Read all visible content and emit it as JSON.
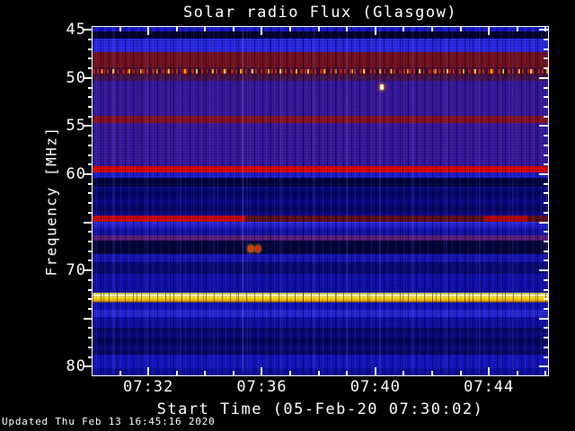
{
  "title": "Solar radio Flux (Glasgow)",
  "footer": {
    "updated_text": "Updated Thu Feb 13 16:45:16 2020"
  },
  "chart_data": {
    "type": "heatmap",
    "subtype": "solar-radio-spectrogram",
    "station": "Glasgow",
    "title": "Solar radio Flux (Glasgow)",
    "xlabel": "Start Time (05-Feb-20 07:30:02)",
    "ylabel": "Frequency [MHz]",
    "colormap": "dark-blue background with red/yellow intensity bands",
    "grid": "off",
    "legend": "none",
    "time_axis": {
      "start_time": "07:30:02",
      "end_time": "07:46:05",
      "tick_labels": [
        "07:32",
        "07:36",
        "07:40",
        "07:44"
      ],
      "minor_tick_interval_seconds": 60
    },
    "freq_axis": {
      "top_mhz": 44.7,
      "bottom_mhz": 80.9,
      "tick_labels": [
        "45",
        "50",
        "55",
        "60",
        "70",
        "80"
      ],
      "labeled_values": [
        45,
        50,
        55,
        60,
        70,
        80
      ],
      "major_tick_values": [
        45,
        50,
        55,
        60,
        65,
        70,
        75,
        80
      ],
      "minor_tick_step_mhz": 1,
      "orientation": "frequency increases downward"
    },
    "base_color": "#0c0cb4",
    "bands": [
      {
        "f0": 44.7,
        "f1": 45.15,
        "color": "#1a1ac8",
        "note": "top edge blue"
      },
      {
        "f0": 45.15,
        "f1": 45.95,
        "color": "#00002e",
        "note": "dark lane"
      },
      {
        "f0": 45.95,
        "f1": 47.3,
        "color": "#2828e6",
        "note": "bright blue noise"
      },
      {
        "f0": 47.3,
        "f1": 48.9,
        "color": "#77101d",
        "note": "broad dark-red RFI band"
      },
      {
        "f0": 48.9,
        "f1": 49.75,
        "color": "#50102e",
        "special": "dashes",
        "dash_colors": [
          "#cf1800",
          "#d42600",
          "#ffb300",
          "#ffd24a"
        ],
        "note": "periodic bright RFI dashes ~49.3 MHz"
      },
      {
        "f0": 49.75,
        "f1": 50.3,
        "color": "#46144e",
        "note": "red-purple transition"
      },
      {
        "f0": 50.3,
        "f1": 53.95,
        "color": "#37189e",
        "note": "purple haze"
      },
      {
        "f0": 53.95,
        "f1": 54.7,
        "color": "#8a1120",
        "note": "dark red RFI band ~54.3 MHz"
      },
      {
        "f0": 54.7,
        "f1": 59.15,
        "color": "#37189e",
        "note": "purple haze"
      },
      {
        "f0": 59.15,
        "f1": 59.8,
        "color": "#e60000",
        "note": "bright red RFI line ~59.5 MHz"
      },
      {
        "f0": 59.8,
        "f1": 60.4,
        "color": "#1d1dd0"
      },
      {
        "f0": 60.4,
        "f1": 61.3,
        "color": "#02023e",
        "note": "dark lane"
      },
      {
        "f0": 61.3,
        "f1": 64.3,
        "special": "vgradient",
        "colors": [
          "#0b0b92",
          "#04045c",
          "#0b0b92",
          "#05055f",
          "#0b0b92"
        ]
      },
      {
        "f0": 64.3,
        "f1": 64.95,
        "special": "segmented",
        "note": "RFI line ~64.5 MHz: bright until ~07:35, re-brightens ~07:44",
        "segments": [
          {
            "from": "07:30:02",
            "to": "07:35:24",
            "color": "#d40000"
          },
          {
            "from": "07:35:24",
            "to": "07:43:51",
            "color": "#5f1014"
          },
          {
            "from": "07:43:51",
            "to": "07:45:22",
            "color": "#bb0000"
          },
          {
            "from": "07:45:22",
            "to": "07:46:05",
            "color": "#5f1014"
          }
        ]
      },
      {
        "f0": 64.95,
        "f1": 65.7,
        "special": "vgradient",
        "colors": [
          "#2e2ee4",
          "#1717c0"
        ]
      },
      {
        "f0": 65.7,
        "f1": 66.3,
        "color": "#1212a8"
      },
      {
        "f0": 66.3,
        "f1": 66.9,
        "color": "#5c1e7a",
        "note": "purple-red band"
      },
      {
        "f0": 66.9,
        "f1": 68.3,
        "color": "#04043c",
        "note": "dark lane with burst dots"
      },
      {
        "f0": 68.3,
        "f1": 69.15,
        "color": "#1616bb"
      },
      {
        "f0": 69.15,
        "f1": 70.4,
        "color": "#090974"
      },
      {
        "f0": 70.4,
        "f1": 72.35,
        "color": "#1010ad"
      },
      {
        "f0": 72.35,
        "f1": 73.3,
        "special": "vgradient",
        "colors": [
          "#c8c81e",
          "#ffffd0",
          "#ffe000",
          "#ffc400",
          "#6a4208"
        ],
        "note": "saturated yellow/white RFI line ~72.8 MHz"
      },
      {
        "f0": 73.3,
        "f1": 74.1,
        "color": "#1111bb"
      },
      {
        "f0": 74.1,
        "f1": 74.8,
        "color": "#2727dd",
        "note": "lighter blue band"
      },
      {
        "f0": 74.8,
        "f1": 76.0,
        "color": "#0f0fa8"
      },
      {
        "f0": 76.0,
        "f1": 78.8,
        "special": "vgradient",
        "colors": [
          "#06065e",
          "#0b0b86",
          "#05055a",
          "#0a0a80",
          "#06065e"
        ]
      },
      {
        "f0": 78.8,
        "f1": 80.2,
        "color": "#1515c2"
      },
      {
        "f0": 80.2,
        "f1": 80.9,
        "color": "#0d0da4"
      }
    ],
    "point_events": [
      {
        "time": "07:40:13",
        "freq_mhz": 50.95,
        "color": "#ffffd8",
        "halo": "#ff7700",
        "note": "bright yellow-white pixel"
      },
      {
        "time": "07:35:36",
        "freq_mhz": 67.75,
        "color": "#ee3300",
        "halo": "#ffaa00",
        "note": "red burst dot"
      },
      {
        "time": "07:35:51",
        "freq_mhz": 67.75,
        "color": "#dd2200",
        "halo": "#ff9900",
        "note": "red burst dot"
      }
    ],
    "vertical_seam_time": "07:35:19"
  }
}
